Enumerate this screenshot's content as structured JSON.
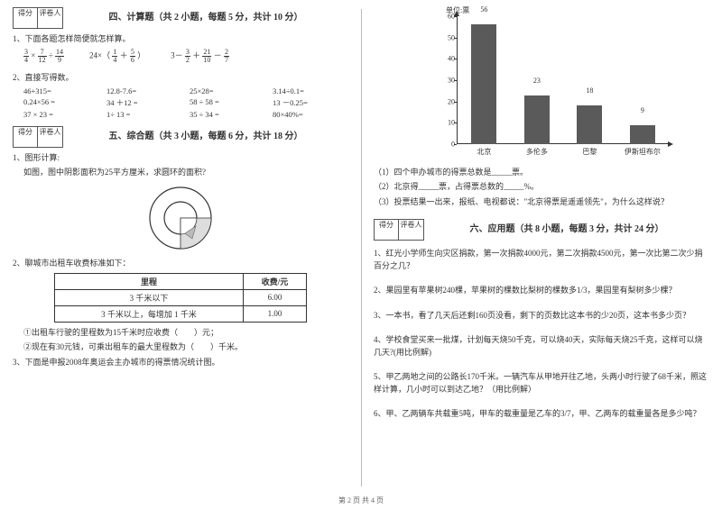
{
  "scorebox": {
    "c1": "得分",
    "c2": "评卷人"
  },
  "sec4": {
    "title": "四、计算题（共 2 小题，每题 5 分，共计 10 分）",
    "q1": "1、下面各题怎样简便就怎样算。",
    "expr": {
      "a_n1": "3",
      "a_d1": "4",
      "a_op1": "×",
      "a_n2": "7",
      "a_d2": "12",
      "a_op2": "÷",
      "a_n3": "14",
      "a_d3": "9",
      "b_pre": "24×（",
      "b_n1": "1",
      "b_d1": "4",
      "b_mid": "＋",
      "b_n2": "5",
      "b_d2": "6",
      "b_post": "）",
      "c_pre": "3－",
      "c_n1": "3",
      "c_d1": "2",
      "c_mid": "＋",
      "c_n2": "21",
      "c_d2": "10",
      "c_post": "－",
      "c_n3": "2",
      "c_d3": "7"
    },
    "q2": "2、直接写得数。",
    "calc": [
      "46+315=",
      "12.8-7.6=",
      "25×28=",
      "3.14÷0.1=",
      "0.24×56 =",
      "34 ＋12 =",
      "58 ÷ 58 =",
      "13 －0.25=",
      "37 × 23 =",
      "1÷ 13 =",
      "35 ÷ 34 =",
      "80×40%="
    ]
  },
  "sec5": {
    "title": "五、综合题（共 3 小题，每题 6 分，共计 18 分）",
    "q1": "1、图形计算:",
    "q1b": "如图，图中阴影面积为25平方厘米，求圆环的面积?",
    "q2": "2、聊城市出租车收费标准如下：",
    "table": {
      "h1": "里程",
      "h2": "收费/元",
      "r1c1": "3 千米以下",
      "r1c2": "6.00",
      "r2c1": "3 千米以上，每增加 1 千米",
      "r2c2": "1.00"
    },
    "q2a": "①出租车行驶的里程数为15千米时应收费（　　）元；",
    "q2b": "②现在有30元钱，可乘出租车的最大里程数为（　　）千米。",
    "q3": "3、下面是申报2008年奥运会主办城市的得票情况统计图。"
  },
  "chart": {
    "unit": "单位:票",
    "ymax": 60,
    "ystep": 10,
    "bars": [
      {
        "label": "北京",
        "value": 56,
        "color": "#5a5a5a"
      },
      {
        "label": "多伦多",
        "value": 23,
        "color": "#5a5a5a"
      },
      {
        "label": "巴黎",
        "value": 18,
        "color": "#5a5a5a"
      },
      {
        "label": "伊斯坦布尔",
        "value": 9,
        "color": "#5a5a5a"
      }
    ],
    "q1": "（1）四个申办城市的得票总数是_____票。",
    "q2": "（2）北京得_____票，占得票总数的_____%。",
    "q3": "（3）投票结果一出来，报纸、电视都说：\"北京得票是遥遥领先\"，为什么这样说？"
  },
  "sec6": {
    "title": "六、应用题（共 8 小题，每题 3 分，共计 24 分）",
    "q1": "1、红光小学师生向灾区捐款，第一次捐款4000元，第二次捐款4500元，第一次比第二次少捐百分之几？",
    "q2": "2、果园里有苹果树240棵，苹果树的棵数比梨树的棵数多1/3，果园里有梨树多少棵？",
    "q3": "3、一本书，看了几天后还剩160页没看，剩下的页数比这本书的少20页，这本书多少页？",
    "q4": "4、学校食堂买来一批煤，计划每天烧50千克，可以烧40天，实际每天烧25千克，这样可以烧几天?(用比例解)",
    "q5": "5、甲乙两地之间的公路长170千米。一辆汽车从甲地开往乙地，头两小时行驶了68千米，照这样计算，几小时可以到达乙地？（用比例解）",
    "q6": "6、甲、乙两辆车共载重5吨，甲车的载重量是乙车的3/7，甲、乙两车的载重量各是多少吨？"
  },
  "footer": "第 2 页 共 4 页"
}
